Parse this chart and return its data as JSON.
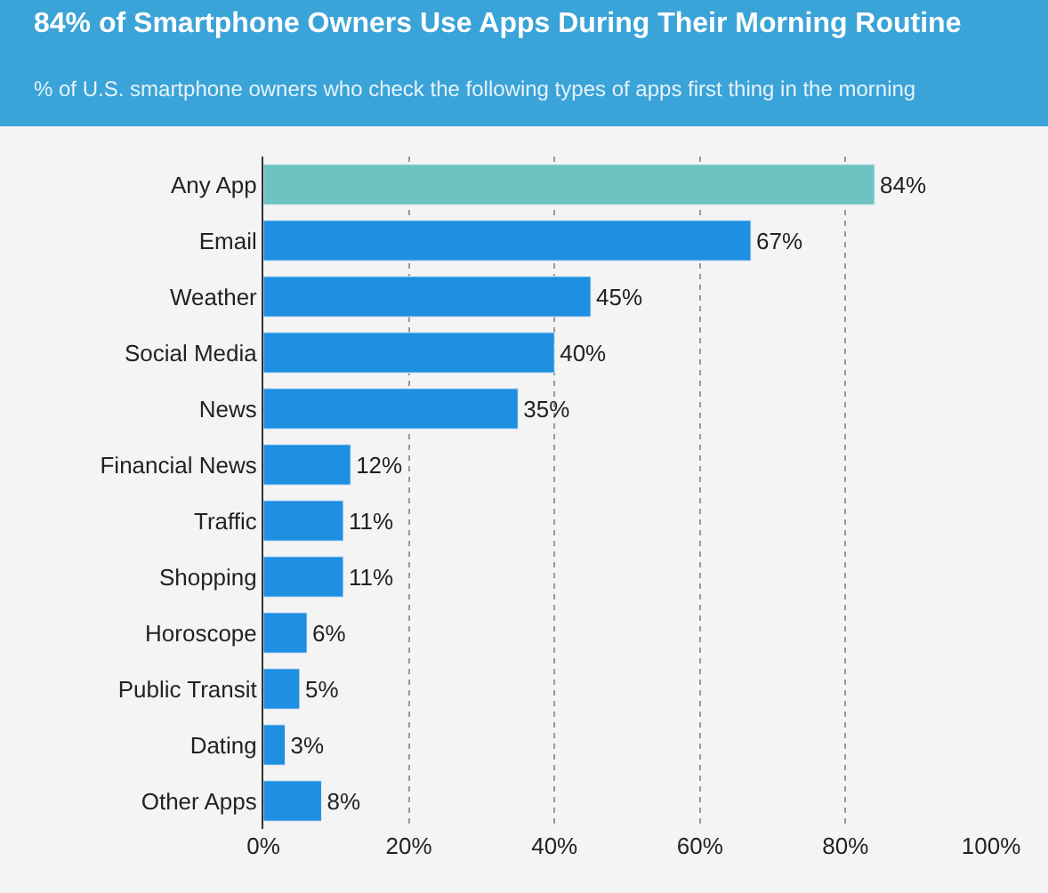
{
  "chart_data": {
    "type": "bar",
    "orientation": "horizontal",
    "title": "84% of Smartphone Owners Use Apps During Their Morning Routine",
    "subtitle": "% of U.S. smartphone owners who check the following types of apps first thing in the morning",
    "categories": [
      "Any App",
      "Email",
      "Weather",
      "Social Media",
      "News",
      "Financial News",
      "Traffic",
      "Shopping",
      "Horoscope",
      "Public Transit",
      "Dating",
      "Other Apps"
    ],
    "values": [
      84,
      67,
      45,
      40,
      35,
      12,
      11,
      11,
      6,
      5,
      3,
      8
    ],
    "colors": [
      "#6cc3c1",
      "#1e8fe1",
      "#1e8fe1",
      "#1e8fe1",
      "#1e8fe1",
      "#1e8fe1",
      "#1e8fe1",
      "#1e8fe1",
      "#1e8fe1",
      "#1e8fe1",
      "#1e8fe1",
      "#1e8fe1"
    ],
    "value_labels": [
      "84%",
      "67%",
      "45%",
      "40%",
      "35%",
      "12%",
      "11%",
      "11%",
      "6%",
      "5%",
      "3%",
      "8%"
    ],
    "xlim": [
      0,
      100
    ],
    "xticks": [
      {
        "value": 0,
        "label": "0%"
      },
      {
        "value": 20,
        "label": "20%"
      },
      {
        "value": 40,
        "label": "40%"
      },
      {
        "value": 60,
        "label": "60%"
      },
      {
        "value": 80,
        "label": "80%"
      },
      {
        "value": 100,
        "label": "100%"
      }
    ],
    "grid": "x"
  }
}
